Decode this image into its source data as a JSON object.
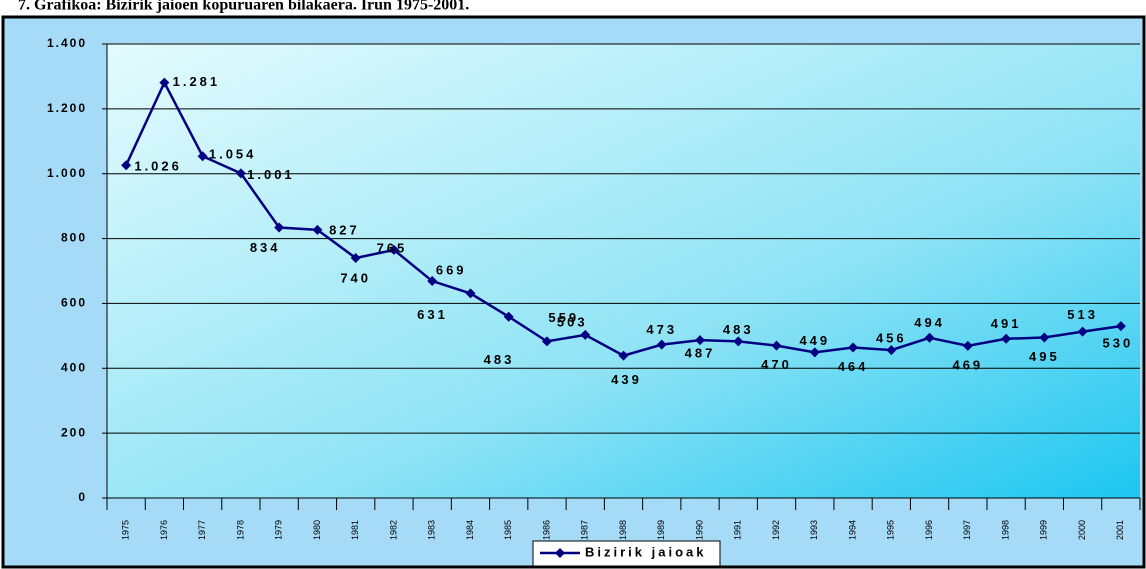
{
  "chart_data": {
    "type": "line",
    "title": "7. Grafikoa: Bizirik jaioen kopuruaren bilakaera. Irun 1975-2001.",
    "categories": [
      "1975",
      "1976",
      "1977",
      "1978",
      "1979",
      "1980",
      "1981",
      "1982",
      "1983",
      "1984",
      "1985",
      "1986",
      "1987",
      "1988",
      "1989",
      "1990",
      "1991",
      "1992",
      "1993",
      "1994",
      "1995",
      "1996",
      "1997",
      "1998",
      "1999",
      "2000",
      "2001"
    ],
    "series": [
      {
        "name": "Bizirik jaioak",
        "color": "#000080",
        "values": [
          1026,
          1281,
          1054,
          1001,
          834,
          827,
          740,
          765,
          669,
          631,
          559,
          483,
          503,
          439,
          473,
          487,
          483,
          470,
          449,
          464,
          456,
          494,
          469,
          491,
          495,
          513,
          530
        ],
        "value_labels": [
          "1.026",
          "1.281",
          "1.054",
          "1.001",
          "834",
          "827",
          "740",
          "765",
          "669",
          "631",
          "559",
          "483",
          "503",
          "439",
          "473",
          "487",
          "483",
          "470",
          "449",
          "464",
          "456",
          "494",
          "469",
          "491",
          "495",
          "513",
          "530"
        ]
      }
    ],
    "ylim": [
      0,
      1400
    ],
    "yticks": [
      0,
      200,
      400,
      600,
      800,
      {
        "value": 1000,
        "label": "1.000"
      },
      {
        "value": 1200,
        "label": "1.200"
      },
      {
        "value": 1400,
        "label": "1.400"
      }
    ],
    "grid": true,
    "legend": "bottom"
  }
}
